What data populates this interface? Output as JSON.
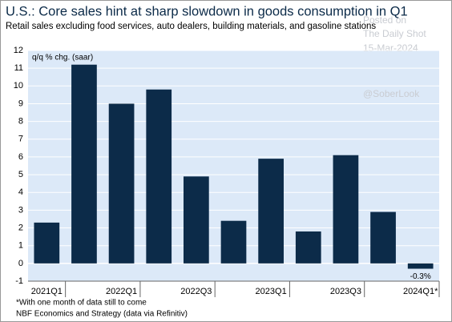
{
  "chart_data": {
    "type": "bar",
    "title": "U.S.: Core sales hint at sharp slowdown in goods consumption in Q1",
    "subtitle": "Retail sales excluding food services, auto dealers, building materials, and gasoline stations",
    "y_label": "q/q % chg. (saar)",
    "categories": [
      "2021Q1",
      null,
      "2022Q1",
      null,
      "2022Q3",
      null,
      "2023Q1",
      null,
      "2023Q3",
      null,
      "2024Q1*"
    ],
    "values": [
      2.3,
      11.2,
      9.0,
      9.8,
      4.9,
      2.4,
      5.9,
      1.8,
      6.1,
      2.9,
      -0.3
    ],
    "value_labels": [
      null,
      null,
      null,
      null,
      null,
      null,
      null,
      null,
      null,
      null,
      "-0.3%"
    ],
    "color": "#0c2b49",
    "ylim": [
      -1,
      12
    ],
    "yticks": [
      -1,
      0,
      1,
      2,
      3,
      4,
      5,
      6,
      7,
      8,
      9,
      10,
      11,
      12
    ],
    "grid": true,
    "footnotes": [
      "*With one month of data still to come",
      "NBF Economics and Strategy (data via Refinitiv)"
    ],
    "watermark": [
      "Posted on",
      "The Daily Shot",
      "15-Mar-2024",
      "@SoberLook"
    ]
  }
}
